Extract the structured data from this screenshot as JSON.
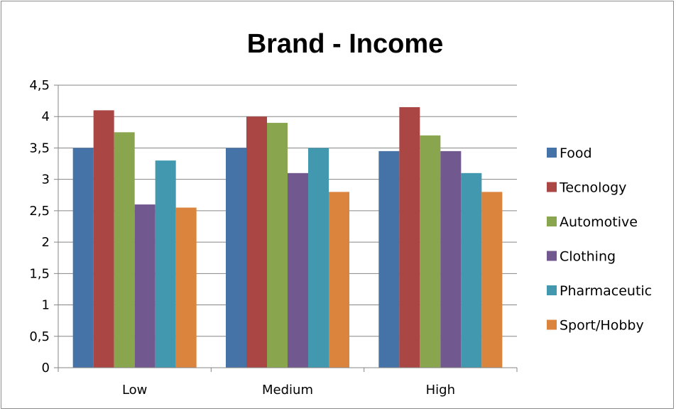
{
  "chart_data": {
    "type": "bar",
    "title": "Brand - Income",
    "xlabel": "",
    "ylabel": "",
    "categories": [
      "Low",
      "Medium",
      "High"
    ],
    "ylim": [
      0,
      4.5
    ],
    "yticks": [
      "0",
      "0,5",
      "1",
      "1,5",
      "2",
      "2,5",
      "3",
      "3,5",
      "4",
      "4,5"
    ],
    "grid": true,
    "legend_position": "right",
    "series": [
      {
        "name": "Food",
        "color": "#4572A7",
        "values": [
          3.5,
          3.5,
          3.45
        ]
      },
      {
        "name": "Tecnology",
        "color": "#AA4643",
        "values": [
          4.1,
          4.0,
          4.15
        ]
      },
      {
        "name": "Automotive",
        "color": "#89A54E",
        "values": [
          3.75,
          3.9,
          3.7
        ]
      },
      {
        "name": "Clothing",
        "color": "#71588F",
        "values": [
          2.6,
          3.1,
          3.45
        ]
      },
      {
        "name": "Pharmaceutic",
        "color": "#4198AF",
        "values": [
          3.3,
          3.5,
          3.1
        ]
      },
      {
        "name": "Sport/Hobby",
        "color": "#DB843D",
        "values": [
          2.55,
          2.8,
          2.8
        ]
      }
    ]
  }
}
